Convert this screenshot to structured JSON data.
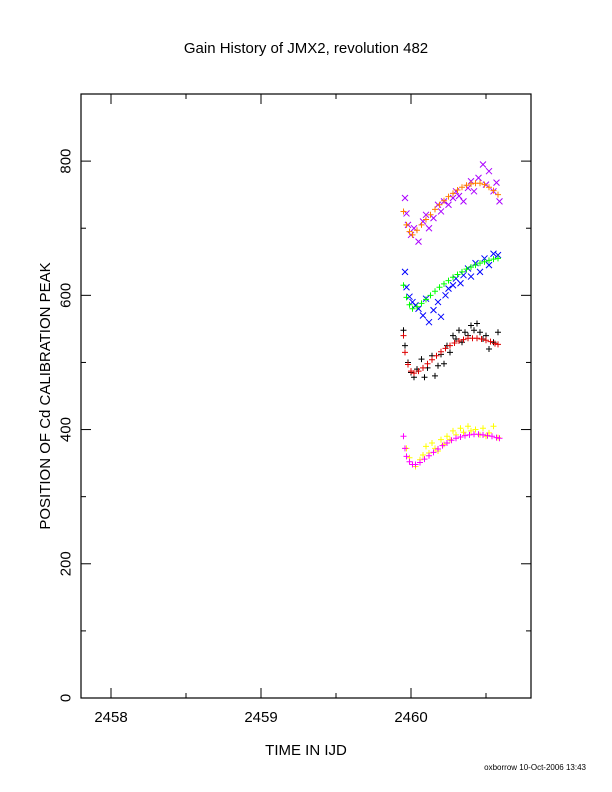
{
  "chart_data": {
    "type": "scatter",
    "title": "Gain History of JMX2, revolution 482",
    "xlabel": "TIME IN IJD",
    "ylabel": "POSITION OF Cd CALIBRATION PEAK",
    "xlim": [
      2457.8,
      2460.8
    ],
    "ylim": [
      0,
      900
    ],
    "x_ticks": [
      2458,
      2459,
      2460
    ],
    "x_tick_labels": [
      "2458",
      "2459",
      "2460"
    ],
    "y_ticks": [
      0,
      200,
      400,
      600,
      800
    ],
    "y_tick_labels": [
      "0",
      "200",
      "400",
      "600",
      "800"
    ],
    "grid": false,
    "legend": "none",
    "series": [
      {
        "color": "#aa00ff",
        "marker": "x",
        "values": [
          [
            2459.96,
            745
          ],
          [
            2459.97,
            722
          ],
          [
            2459.98,
            705
          ],
          [
            2460.0,
            690
          ],
          [
            2460.02,
            700
          ],
          [
            2460.05,
            680
          ],
          [
            2460.08,
            710
          ],
          [
            2460.1,
            720
          ],
          [
            2460.12,
            700
          ],
          [
            2460.15,
            715
          ],
          [
            2460.18,
            735
          ],
          [
            2460.2,
            725
          ],
          [
            2460.22,
            740
          ],
          [
            2460.25,
            735
          ],
          [
            2460.28,
            745
          ],
          [
            2460.3,
            755
          ],
          [
            2460.32,
            748
          ],
          [
            2460.35,
            740
          ],
          [
            2460.38,
            760
          ],
          [
            2460.4,
            770
          ],
          [
            2460.42,
            755
          ],
          [
            2460.45,
            775
          ],
          [
            2460.48,
            795
          ],
          [
            2460.5,
            765
          ],
          [
            2460.52,
            785
          ],
          [
            2460.55,
            755
          ],
          [
            2460.57,
            768
          ],
          [
            2460.59,
            740
          ]
        ]
      },
      {
        "color": "#ff7f00",
        "marker": "+",
        "values": [
          [
            2459.95,
            725
          ],
          [
            2459.97,
            705
          ],
          [
            2459.99,
            695
          ],
          [
            2460.01,
            690
          ],
          [
            2460.04,
            697
          ],
          [
            2460.07,
            705
          ],
          [
            2460.1,
            713
          ],
          [
            2460.13,
            720
          ],
          [
            2460.16,
            728
          ],
          [
            2460.19,
            735
          ],
          [
            2460.22,
            741
          ],
          [
            2460.25,
            747
          ],
          [
            2460.28,
            752
          ],
          [
            2460.31,
            757
          ],
          [
            2460.34,
            761
          ],
          [
            2460.37,
            764
          ],
          [
            2460.4,
            766
          ],
          [
            2460.43,
            767
          ],
          [
            2460.46,
            767
          ],
          [
            2460.49,
            765
          ],
          [
            2460.52,
            761
          ],
          [
            2460.55,
            756
          ],
          [
            2460.58,
            750
          ]
        ]
      },
      {
        "color": "#0000ff",
        "marker": "x",
        "values": [
          [
            2459.96,
            635
          ],
          [
            2459.97,
            612
          ],
          [
            2459.99,
            598
          ],
          [
            2460.01,
            590
          ],
          [
            2460.03,
            585
          ],
          [
            2460.05,
            580
          ],
          [
            2460.08,
            570
          ],
          [
            2460.1,
            595
          ],
          [
            2460.12,
            560
          ],
          [
            2460.15,
            578
          ],
          [
            2460.18,
            590
          ],
          [
            2460.2,
            568
          ],
          [
            2460.23,
            600
          ],
          [
            2460.25,
            610
          ],
          [
            2460.28,
            615
          ],
          [
            2460.3,
            625
          ],
          [
            2460.33,
            618
          ],
          [
            2460.35,
            630
          ],
          [
            2460.38,
            640
          ],
          [
            2460.4,
            628
          ],
          [
            2460.43,
            648
          ],
          [
            2460.46,
            635
          ],
          [
            2460.49,
            655
          ],
          [
            2460.52,
            645
          ],
          [
            2460.55,
            662
          ],
          [
            2460.58,
            660
          ]
        ]
      },
      {
        "color": "#00ff00",
        "marker": "+",
        "values": [
          [
            2459.95,
            615
          ],
          [
            2459.97,
            597
          ],
          [
            2459.99,
            586
          ],
          [
            2460.01,
            580
          ],
          [
            2460.04,
            583
          ],
          [
            2460.07,
            588
          ],
          [
            2460.1,
            594
          ],
          [
            2460.13,
            600
          ],
          [
            2460.16,
            606
          ],
          [
            2460.19,
            612
          ],
          [
            2460.22,
            617
          ],
          [
            2460.25,
            622
          ],
          [
            2460.28,
            627
          ],
          [
            2460.31,
            631
          ],
          [
            2460.34,
            635
          ],
          [
            2460.37,
            639
          ],
          [
            2460.4,
            642
          ],
          [
            2460.43,
            645
          ],
          [
            2460.46,
            648
          ],
          [
            2460.49,
            650
          ],
          [
            2460.52,
            652
          ],
          [
            2460.55,
            654
          ],
          [
            2460.58,
            655
          ]
        ]
      },
      {
        "color": "#000000",
        "marker": "+",
        "values": [
          [
            2459.95,
            548
          ],
          [
            2459.96,
            525
          ],
          [
            2459.98,
            500
          ],
          [
            2460.0,
            485
          ],
          [
            2460.02,
            478
          ],
          [
            2460.04,
            490
          ],
          [
            2460.07,
            505
          ],
          [
            2460.09,
            478
          ],
          [
            2460.11,
            492
          ],
          [
            2460.14,
            510
          ],
          [
            2460.16,
            480
          ],
          [
            2460.18,
            495
          ],
          [
            2460.2,
            512
          ],
          [
            2460.22,
            498
          ],
          [
            2460.24,
            525
          ],
          [
            2460.26,
            515
          ],
          [
            2460.28,
            540
          ],
          [
            2460.3,
            535
          ],
          [
            2460.32,
            548
          ],
          [
            2460.34,
            530
          ],
          [
            2460.36,
            545
          ],
          [
            2460.38,
            540
          ],
          [
            2460.4,
            555
          ],
          [
            2460.42,
            548
          ],
          [
            2460.44,
            558
          ],
          [
            2460.46,
            545
          ],
          [
            2460.48,
            535
          ],
          [
            2460.5,
            540
          ],
          [
            2460.52,
            520
          ],
          [
            2460.55,
            530
          ],
          [
            2460.58,
            545
          ]
        ]
      },
      {
        "color": "#dd0000",
        "marker": "+",
        "values": [
          [
            2459.95,
            540
          ],
          [
            2459.96,
            515
          ],
          [
            2459.98,
            497
          ],
          [
            2460.0,
            487
          ],
          [
            2460.02,
            484
          ],
          [
            2460.05,
            487
          ],
          [
            2460.08,
            492
          ],
          [
            2460.11,
            498
          ],
          [
            2460.14,
            504
          ],
          [
            2460.17,
            510
          ],
          [
            2460.2,
            516
          ],
          [
            2460.23,
            521
          ],
          [
            2460.26,
            525
          ],
          [
            2460.29,
            529
          ],
          [
            2460.32,
            532
          ],
          [
            2460.35,
            534
          ],
          [
            2460.38,
            536
          ],
          [
            2460.41,
            536
          ],
          [
            2460.44,
            536
          ],
          [
            2460.47,
            535
          ],
          [
            2460.5,
            533
          ],
          [
            2460.53,
            531
          ],
          [
            2460.56,
            528
          ],
          [
            2460.58,
            527
          ]
        ]
      },
      {
        "color": "#ffff00",
        "marker": "+",
        "values": [
          [
            2459.97,
            372
          ],
          [
            2459.99,
            358
          ],
          [
            2460.01,
            348
          ],
          [
            2460.03,
            345
          ],
          [
            2460.06,
            355
          ],
          [
            2460.08,
            362
          ],
          [
            2460.1,
            375
          ],
          [
            2460.12,
            365
          ],
          [
            2460.14,
            380
          ],
          [
            2460.16,
            372
          ],
          [
            2460.18,
            368
          ],
          [
            2460.2,
            385
          ],
          [
            2460.22,
            378
          ],
          [
            2460.24,
            390
          ],
          [
            2460.26,
            385
          ],
          [
            2460.28,
            398
          ],
          [
            2460.3,
            392
          ],
          [
            2460.33,
            402
          ],
          [
            2460.35,
            396
          ],
          [
            2460.38,
            405
          ],
          [
            2460.4,
            398
          ],
          [
            2460.43,
            400
          ],
          [
            2460.46,
            392
          ],
          [
            2460.48,
            402
          ],
          [
            2460.5,
            390
          ],
          [
            2460.52,
            395
          ],
          [
            2460.55,
            405
          ],
          [
            2460.58,
            388
          ]
        ]
      },
      {
        "color": "#ff00ff",
        "marker": "+",
        "values": [
          [
            2459.95,
            390
          ],
          [
            2459.96,
            372
          ],
          [
            2459.97,
            360
          ],
          [
            2459.99,
            352
          ],
          [
            2460.01,
            348
          ],
          [
            2460.03,
            348
          ],
          [
            2460.06,
            351
          ],
          [
            2460.09,
            356
          ],
          [
            2460.12,
            361
          ],
          [
            2460.15,
            366
          ],
          [
            2460.18,
            371
          ],
          [
            2460.21,
            376
          ],
          [
            2460.24,
            380
          ],
          [
            2460.27,
            384
          ],
          [
            2460.3,
            387
          ],
          [
            2460.33,
            389
          ],
          [
            2460.36,
            391
          ],
          [
            2460.39,
            392
          ],
          [
            2460.42,
            393
          ],
          [
            2460.45,
            393
          ],
          [
            2460.48,
            392
          ],
          [
            2460.51,
            391
          ],
          [
            2460.54,
            390
          ],
          [
            2460.57,
            388
          ],
          [
            2460.59,
            387
          ]
        ]
      }
    ]
  },
  "footer": "oxborrow 10-Oct-2006 13:43"
}
